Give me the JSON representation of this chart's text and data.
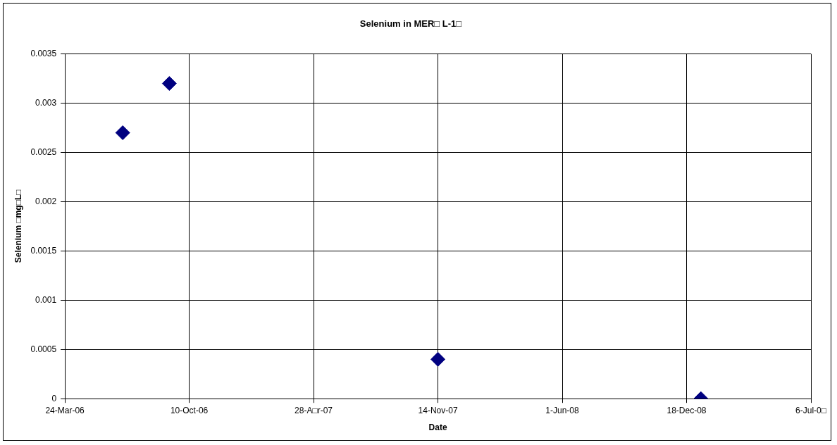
{
  "chart_data": {
    "type": "scatter",
    "title": "Selenium in MER□ L-1□",
    "xlabel": "Date",
    "ylabel": "Selenium □mg□L□",
    "x": [
      "2006-06-25",
      "2006-09-08",
      "2007-11-14",
      "2009-01-10"
    ],
    "series": [
      {
        "color": "#000080",
        "values": [
          0.0027,
          0.0032,
          0.0004,
          0
        ]
      }
    ],
    "xlim": [
      "2006-03-24",
      "2009-07-06"
    ],
    "xticks": [
      {
        "value": "2006-03-24",
        "label": "24-Mar-06"
      },
      {
        "value": "2006-10-10",
        "label": "10-Oct-06"
      },
      {
        "value": "2007-04-28",
        "label": "28-A□r-07"
      },
      {
        "value": "2007-11-14",
        "label": "14-Nov-07"
      },
      {
        "value": "2008-06-01",
        "label": "1-Jun-08"
      },
      {
        "value": "2008-12-18",
        "label": "18-Dec-08"
      },
      {
        "value": "2009-07-06",
        "label": "6-Jul-0□"
      }
    ],
    "ylim": [
      0,
      0.0035
    ],
    "yticks": [
      0,
      0.0005,
      0.001,
      0.0015,
      0.002,
      0.0025,
      0.003,
      0.0035
    ],
    "grid": true,
    "legend": false,
    "marker": "diamond"
  }
}
